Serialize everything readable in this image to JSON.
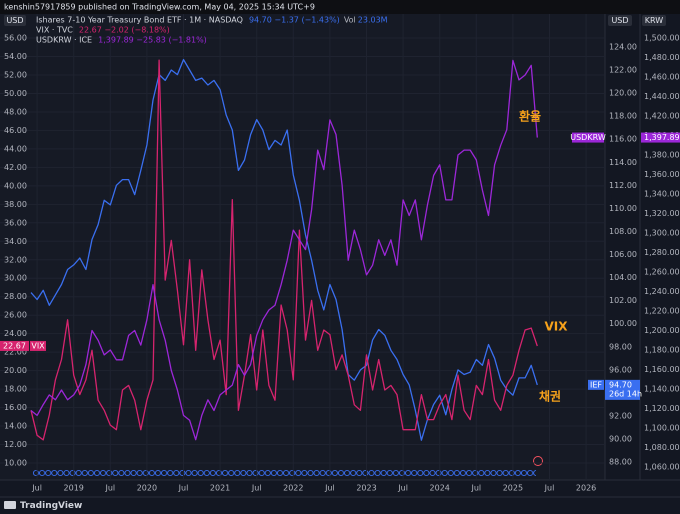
{
  "attribution": "kenshin57917859 published on TradingView.com, May 04, 2025 15:34 UTC+9",
  "footer_brand": "TradingView",
  "chart_data": {
    "type": "line",
    "y_label": "USD",
    "y2_label": "USD",
    "y3_label": "KRW",
    "grid": true,
    "xlim": [
      "2018-06",
      "2026-04"
    ],
    "xticks": [
      {
        "value": "2018-07",
        "label": "Jul"
      },
      {
        "value": "2019-01",
        "label": "2019"
      },
      {
        "value": "2019-07",
        "label": "Jul"
      },
      {
        "value": "2020-01",
        "label": "2020"
      },
      {
        "value": "2020-07",
        "label": "Jul"
      },
      {
        "value": "2021-01",
        "label": "2021"
      },
      {
        "value": "2021-07",
        "label": "Jul"
      },
      {
        "value": "2022-01",
        "label": "2022"
      },
      {
        "value": "2022-07",
        "label": "Jul"
      },
      {
        "value": "2023-01",
        "label": "2023"
      },
      {
        "value": "2023-07",
        "label": "Jul"
      },
      {
        "value": "2024-01",
        "label": "2024"
      },
      {
        "value": "2024-07",
        "label": "Jul"
      },
      {
        "value": "2025-01",
        "label": "2025"
      },
      {
        "value": "2025-07",
        "label": "Jul"
      },
      {
        "value": "2026-01",
        "label": "2026"
      }
    ],
    "ylim": [
      8.16,
      56.87
    ],
    "yticks": [
      {
        "value": 10,
        "label": "10.00"
      },
      {
        "value": 12,
        "label": "12.00"
      },
      {
        "value": 14,
        "label": "14.00"
      },
      {
        "value": 16,
        "label": "16.00"
      },
      {
        "value": 18,
        "label": "18.00"
      },
      {
        "value": 20,
        "label": "20.00"
      },
      {
        "value": 22,
        "label": "22.00"
      },
      {
        "value": 24,
        "label": "24.00"
      },
      {
        "value": 26,
        "label": "26.00"
      },
      {
        "value": 28,
        "label": "28.00"
      },
      {
        "value": 30,
        "label": "30.00"
      },
      {
        "value": 32,
        "label": "32.00"
      },
      {
        "value": 34,
        "label": "34.00"
      },
      {
        "value": 36,
        "label": "36.00"
      },
      {
        "value": 38,
        "label": "38.00"
      },
      {
        "value": 40,
        "label": "40.00"
      },
      {
        "value": 42,
        "label": "42.00"
      },
      {
        "value": 44,
        "label": "44.00"
      },
      {
        "value": 46,
        "label": "46.00"
      },
      {
        "value": 48,
        "label": "48.00"
      },
      {
        "value": 50,
        "label": "50.00"
      },
      {
        "value": 52,
        "label": "52.00"
      },
      {
        "value": 54,
        "label": "54.00"
      },
      {
        "value": 56,
        "label": "56.00"
      }
    ],
    "y2lim": [
      86.45,
      125.47
    ],
    "y2ticks": [
      {
        "value": 88,
        "label": "88.00"
      },
      {
        "value": 90,
        "label": "90.00"
      },
      {
        "value": 92,
        "label": "92.00"
      },
      {
        "value": 94,
        "label": "94.00"
      },
      {
        "value": 96,
        "label": "96.00"
      },
      {
        "value": 98,
        "label": "98.00"
      },
      {
        "value": 100,
        "label": "100.00"
      },
      {
        "value": 102,
        "label": "102.00"
      },
      {
        "value": 104,
        "label": "104.00"
      },
      {
        "value": 106,
        "label": "106.00"
      },
      {
        "value": 108,
        "label": "108.00"
      },
      {
        "value": 110,
        "label": "110.00"
      },
      {
        "value": 112,
        "label": "112.00"
      },
      {
        "value": 114,
        "label": "114.00"
      },
      {
        "value": 116,
        "label": "116.00"
      },
      {
        "value": 118,
        "label": "118.00"
      },
      {
        "value": 120,
        "label": "120.00"
      },
      {
        "value": 122,
        "label": "122.00"
      },
      {
        "value": 124,
        "label": "124.00"
      }
    ],
    "y3lim": [
      1046.7,
      1508.2
    ],
    "y3ticks": [
      {
        "value": 1060,
        "label": "1,060.00"
      },
      {
        "value": 1080,
        "label": "1,080.00"
      },
      {
        "value": 1100,
        "label": "1,100.00"
      },
      {
        "value": 1120,
        "label": "1,120.00"
      },
      {
        "value": 1140,
        "label": "1,140.00"
      },
      {
        "value": 1160,
        "label": "1,160.00"
      },
      {
        "value": 1180,
        "label": "1,180.00"
      },
      {
        "value": 1200,
        "label": "1,200.00"
      },
      {
        "value": 1220,
        "label": "1,220.00"
      },
      {
        "value": 1240,
        "label": "1,240.00"
      },
      {
        "value": 1260,
        "label": "1,260.00"
      },
      {
        "value": 1280,
        "label": "1,280.00"
      },
      {
        "value": 1300,
        "label": "1,300.00"
      },
      {
        "value": 1320,
        "label": "1,320.00"
      },
      {
        "value": 1340,
        "label": "1,340.00"
      },
      {
        "value": 1360,
        "label": "1,360.00"
      },
      {
        "value": 1380,
        "label": "1,380.00"
      },
      {
        "value": 1400,
        "label": "1,400.00"
      },
      {
        "value": 1420,
        "label": "1,420.00"
      },
      {
        "value": 1440,
        "label": "1,440.00"
      },
      {
        "value": 1460,
        "label": "1,460.00"
      },
      {
        "value": 1480,
        "label": "1,480.00"
      },
      {
        "value": 1500,
        "label": "1,500.00"
      }
    ],
    "x": [
      "2018-06",
      "2018-07",
      "2018-08",
      "2018-09",
      "2018-10",
      "2018-11",
      "2018-12",
      "2019-01",
      "2019-02",
      "2019-03",
      "2019-04",
      "2019-05",
      "2019-06",
      "2019-07",
      "2019-08",
      "2019-09",
      "2019-10",
      "2019-11",
      "2019-12",
      "2020-01",
      "2020-02",
      "2020-03",
      "2020-04",
      "2020-05",
      "2020-06",
      "2020-07",
      "2020-08",
      "2020-09",
      "2020-10",
      "2020-11",
      "2020-12",
      "2021-01",
      "2021-02",
      "2021-03",
      "2021-04",
      "2021-05",
      "2021-06",
      "2021-07",
      "2021-08",
      "2021-09",
      "2021-10",
      "2021-11",
      "2021-12",
      "2022-01",
      "2022-02",
      "2022-03",
      "2022-04",
      "2022-05",
      "2022-06",
      "2022-07",
      "2022-08",
      "2022-09",
      "2022-10",
      "2022-11",
      "2022-12",
      "2023-01",
      "2023-02",
      "2023-03",
      "2023-04",
      "2023-05",
      "2023-06",
      "2023-07",
      "2023-08",
      "2023-09",
      "2023-10",
      "2023-11",
      "2023-12",
      "2024-01",
      "2024-02",
      "2024-03",
      "2024-04",
      "2024-05",
      "2024-06",
      "2024-07",
      "2024-08",
      "2024-09",
      "2024-10",
      "2024-11",
      "2024-12",
      "2025-01",
      "2025-02",
      "2025-03",
      "2025-04",
      "2025-05"
    ],
    "series": [
      {
        "name": "Ishares 7-10 Year Treasury Bond ETF · 1M · NASDAQ",
        "quote": "94.70  −1.37 (−1.43%)",
        "vol_label": "Vol",
        "vol": "23.03M",
        "axis": "y2",
        "color": "#3a6ff0",
        "tag": "IEF",
        "last_label": "94.70",
        "countdown": "26d 14h",
        "values": [
          102.7,
          102.1,
          102.9,
          101.6,
          102.5,
          103.4,
          104.7,
          105.1,
          105.7,
          104.7,
          107.3,
          108.6,
          110.7,
          110.3,
          112.0,
          112.5,
          112.5,
          111.2,
          113.3,
          115.5,
          119.4,
          121.6,
          121.1,
          122.0,
          121.6,
          122.9,
          122.0,
          121.1,
          121.3,
          120.7,
          121.1,
          120.3,
          118.1,
          116.8,
          113.3,
          114.2,
          116.4,
          117.7,
          116.8,
          115.1,
          115.9,
          115.5,
          116.8,
          112.9,
          110.7,
          107.7,
          105.5,
          102.9,
          101.2,
          103.4,
          102.1,
          99.5,
          95.6,
          95.1,
          96.0,
          96.4,
          98.6,
          99.5,
          99.0,
          97.7,
          96.9,
          95.6,
          94.7,
          92.5,
          89.9,
          91.7,
          93.0,
          93.8,
          92.1,
          94.3,
          96.0,
          95.6,
          95.8,
          96.9,
          96.4,
          98.2,
          97.0,
          95.1,
          94.3,
          93.8,
          95.3,
          95.3,
          96.4,
          94.7
        ]
      },
      {
        "name": "VIX · TVC",
        "quote": "22.67  −2.02 (−8.18%)",
        "axis": "y",
        "color": "#d6246e",
        "tag": "VIX",
        "last_label": "22.67",
        "values": [
          15.7,
          13.0,
          12.5,
          15.2,
          19.0,
          21.2,
          25.5,
          19.5,
          17.4,
          19.0,
          22.2,
          16.8,
          15.7,
          14.1,
          13.6,
          17.9,
          18.4,
          16.8,
          13.6,
          16.8,
          19.0,
          53.6,
          29.8,
          34.1,
          28.7,
          22.8,
          32.0,
          22.2,
          30.9,
          25.5,
          21.2,
          23.3,
          17.4,
          38.5,
          15.7,
          19.5,
          23.9,
          17.9,
          24.4,
          18.4,
          16.8,
          27.1,
          24.4,
          19.0,
          35.2,
          23.3,
          27.6,
          22.2,
          24.4,
          23.9,
          20.1,
          21.7,
          19.5,
          16.3,
          15.7,
          21.7,
          17.9,
          21.2,
          17.9,
          18.4,
          17.4,
          13.6,
          13.6,
          13.6,
          17.4,
          14.7,
          14.7,
          16.3,
          17.4,
          14.7,
          19.5,
          15.7,
          14.7,
          18.4,
          17.4,
          21.2,
          16.8,
          15.7,
          18.4,
          19.5,
          22.2,
          24.4,
          24.6,
          22.67
        ]
      },
      {
        "name": "USDKRW · ICE",
        "quote": "1,397.89  −25.83 (−1.81%)",
        "axis": "y3",
        "color": "#9c27d8",
        "tag": "USDKRW",
        "last_label": "1,397.89",
        "values": [
          1118,
          1113,
          1124,
          1134,
          1129,
          1139,
          1129,
          1134,
          1144,
          1165,
          1200,
          1190,
          1175,
          1180,
          1170,
          1170,
          1195,
          1200,
          1185,
          1211,
          1247,
          1211,
          1190,
          1159,
          1139,
          1113,
          1108,
          1088,
          1113,
          1129,
          1118,
          1134,
          1139,
          1144,
          1165,
          1154,
          1165,
          1195,
          1211,
          1221,
          1226,
          1247,
          1272,
          1303,
          1293,
          1283,
          1324,
          1385,
          1365,
          1416,
          1401,
          1349,
          1272,
          1303,
          1283,
          1257,
          1267,
          1293,
          1277,
          1293,
          1267,
          1334,
          1318,
          1334,
          1293,
          1329,
          1359,
          1370,
          1334,
          1334,
          1380,
          1385,
          1385,
          1375,
          1344,
          1318,
          1370,
          1390,
          1406,
          1477,
          1457,
          1462,
          1472,
          1397.89
        ]
      }
    ],
    "annotations": [
      {
        "text": "환율",
        "color": "#f7a21b"
      },
      {
        "text": "VIX",
        "color": "#f7a21b"
      },
      {
        "text": "채권",
        "color": "#f7a21b"
      }
    ]
  }
}
